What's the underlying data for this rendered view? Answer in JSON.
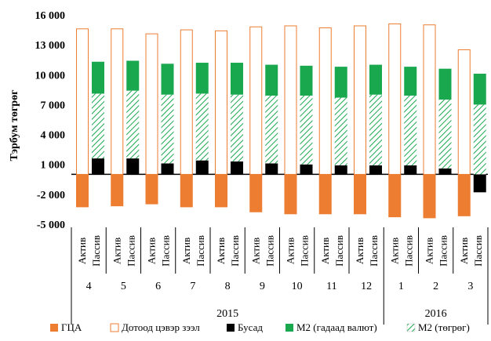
{
  "chart_data": {
    "type": "bar",
    "ylabel": "Тэрбум төгрөг",
    "ylim": [
      -5000,
      16000
    ],
    "yticks": [
      16000,
      13000,
      10000,
      7000,
      4000,
      1000,
      -2000,
      -5000
    ],
    "ytick_labels": [
      "16 000",
      "13 000",
      "10 000",
      "7 000",
      "4 000",
      "1 000",
      "-2 000",
      "-5 000"
    ],
    "bar_labels": [
      "Актив",
      "Пассив"
    ],
    "months": [
      "4",
      "5",
      "6",
      "7",
      "8",
      "9",
      "10",
      "11",
      "12",
      "1",
      "2",
      "3"
    ],
    "years": [
      {
        "label": "2015",
        "start": 0,
        "end": 8
      },
      {
        "label": "2016",
        "start": 9,
        "end": 11
      }
    ],
    "colors": {
      "gca": "#ED7D31",
      "domestic_credit": "#ED7D31",
      "busad": "#000000",
      "m2_fx": "#1AA84F",
      "m2_tug_stripe": "#1AA84F"
    },
    "legend": [
      {
        "key": "gca",
        "label": "ГЦА",
        "style": "solid"
      },
      {
        "key": "domestic_credit",
        "label": "Дотоод цэвэр зээл",
        "style": "outline"
      },
      {
        "key": "busad",
        "label": "Бусад",
        "style": "solid-black"
      },
      {
        "key": "m2_fx",
        "label": "М2 (гадаад валют)",
        "style": "solid-green"
      },
      {
        "key": "m2_tug",
        "label": "М2 (төгрөг)",
        "style": "hatched"
      }
    ],
    "series": {
      "gca": [
        -3300,
        -3200,
        -3000,
        -3300,
        -3300,
        -3800,
        -4000,
        -4000,
        -4000,
        -4300,
        -4400,
        -4200
      ],
      "domestic_credit": [
        14600,
        14600,
        14100,
        14500,
        14400,
        14800,
        14900,
        14700,
        14900,
        15100,
        15000,
        12500
      ],
      "busad": [
        1600,
        1600,
        1100,
        1400,
        1300,
        1100,
        1000,
        900,
        900,
        900,
        600,
        -1800
      ],
      "m2_tug": [
        8100,
        8400,
        8000,
        8100,
        8000,
        7900,
        7900,
        7700,
        8000,
        7900,
        7500,
        7000
      ],
      "m2_total": [
        11300,
        11400,
        11100,
        11200,
        11200,
        11000,
        10900,
        10800,
        11000,
        10800,
        10600,
        10100
      ]
    }
  }
}
